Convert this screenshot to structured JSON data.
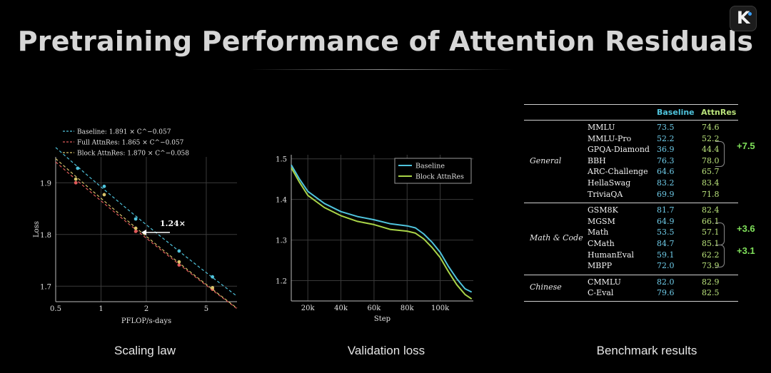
{
  "header": {
    "title": "Pretraining Performance of Attention Residuals",
    "logo_letter": "K"
  },
  "captions": {
    "left": "Scaling law",
    "middle": "Validation loss",
    "right": "Benchmark results"
  },
  "chart_data": [
    {
      "type": "scatter",
      "title": "Scaling law",
      "xlabel": "PFLOP/s-days",
      "ylabel": "Loss",
      "xscale": "log",
      "xlim": [
        0.5,
        8
      ],
      "ylim": [
        1.67,
        1.95
      ],
      "xticks": [
        "0.5",
        "1",
        "2",
        "5"
      ],
      "xtick_values": [
        0.5,
        1,
        2,
        5
      ],
      "yticks": [
        "1.7",
        "1.8",
        "1.9"
      ],
      "ytick_values": [
        1.7,
        1.8,
        1.9
      ],
      "legend": [
        "Baseline: 1.891 × C^−0.057",
        "Full AttnRes: 1.865 × C^−0.057",
        "Block AttnRes: 1.870 × C^−0.058"
      ],
      "annotation": "1.24×",
      "series": [
        {
          "name": "Baseline",
          "color": "#4fc3dc",
          "a": 1.891,
          "b": 0.057,
          "points": [
            [
              0.7,
              1.928
            ],
            [
              1.05,
              1.893
            ],
            [
              1.7,
              1.83
            ],
            [
              3.3,
              1.768
            ],
            [
              5.5,
              1.718
            ]
          ]
        },
        {
          "name": "Full AttnRes",
          "color": "#e05a5a",
          "a": 1.865,
          "b": 0.057,
          "points": [
            [
              0.68,
              1.9
            ],
            [
              1.7,
              1.806
            ],
            [
              3.3,
              1.741
            ],
            [
              5.5,
              1.694
            ]
          ]
        },
        {
          "name": "Block AttnRes",
          "color": "#d8c36a",
          "a": 1.87,
          "b": 0.058,
          "points": [
            [
              0.68,
              1.907
            ],
            [
              1.05,
              1.877
            ],
            [
              1.7,
              1.812
            ],
            [
              3.3,
              1.747
            ],
            [
              5.5,
              1.697
            ]
          ]
        }
      ]
    },
    {
      "type": "line",
      "title": "Validation loss",
      "xlabel": "Step",
      "ylabel": "",
      "xlim": [
        10000,
        120000
      ],
      "ylim": [
        1.15,
        1.51
      ],
      "xticks": [
        "20k",
        "40k",
        "60k",
        "80k",
        "100k"
      ],
      "xtick_values": [
        20000,
        40000,
        60000,
        80000,
        100000
      ],
      "yticks": [
        "1.2",
        "1.3",
        "1.4",
        "1.5"
      ],
      "ytick_values": [
        1.2,
        1.3,
        1.4,
        1.5
      ],
      "x": [
        10000,
        15000,
        20000,
        30000,
        40000,
        50000,
        60000,
        70000,
        80000,
        85000,
        90000,
        95000,
        100000,
        105000,
        110000,
        115000,
        119000
      ],
      "series": [
        {
          "name": "Baseline",
          "color": "#4fc3dc",
          "values": [
            1.485,
            1.45,
            1.42,
            1.39,
            1.37,
            1.358,
            1.35,
            1.34,
            1.335,
            1.33,
            1.315,
            1.295,
            1.27,
            1.235,
            1.205,
            1.18,
            1.172
          ]
        },
        {
          "name": "Block AttnRes",
          "color": "#a9d448",
          "values": [
            1.478,
            1.442,
            1.41,
            1.38,
            1.36,
            1.346,
            1.338,
            1.326,
            1.322,
            1.317,
            1.303,
            1.282,
            1.257,
            1.222,
            1.19,
            1.166,
            1.155
          ]
        }
      ]
    },
    {
      "type": "table",
      "title": "Benchmark results",
      "columns": [
        "",
        "",
        "Baseline",
        "AttnRes"
      ],
      "groups": [
        {
          "category": "General",
          "gain": "+7.5",
          "rows": [
            [
              "MMLU",
              "73.5",
              "74.6"
            ],
            [
              "MMLU-Pro",
              "52.2",
              "52.2"
            ],
            [
              "GPQA-Diamond",
              "36.9",
              "44.4"
            ],
            [
              "BBH",
              "76.3",
              "78.0"
            ],
            [
              "ARC-Challenge",
              "64.6",
              "65.7"
            ],
            [
              "HellaSwag",
              "83.2",
              "83.4"
            ],
            [
              "TriviaQA",
              "69.9",
              "71.8"
            ]
          ]
        },
        {
          "category": "Math & Code",
          "gain": "+3.6",
          "gain2": "+3.1",
          "rows": [
            [
              "GSM8K",
              "81.7",
              "82.4"
            ],
            [
              "MGSM",
              "64.9",
              "66.1"
            ],
            [
              "Math",
              "53.5",
              "57.1"
            ],
            [
              "CMath",
              "84.7",
              "85.1"
            ],
            [
              "HumanEval",
              "59.1",
              "62.2"
            ],
            [
              "MBPP",
              "72.0",
              "73.9"
            ]
          ]
        },
        {
          "category": "Chinese",
          "rows": [
            [
              "CMMLU",
              "82.0",
              "82.9"
            ],
            [
              "C-Eval",
              "79.6",
              "82.5"
            ]
          ]
        }
      ]
    }
  ]
}
